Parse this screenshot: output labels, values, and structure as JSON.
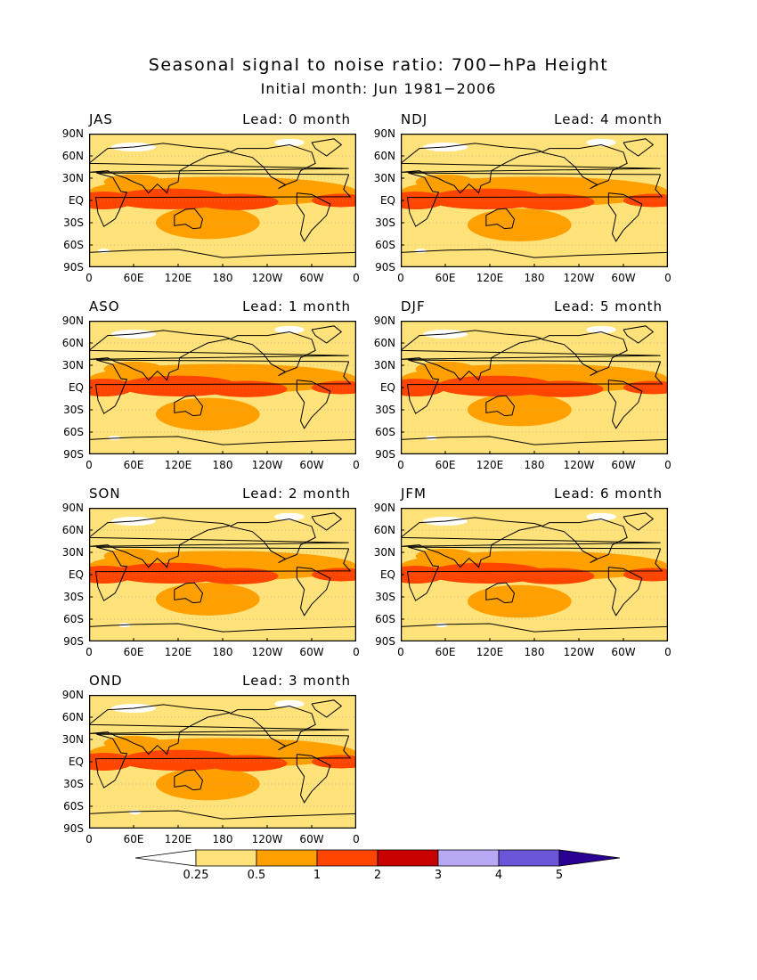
{
  "title": "Seasonal signal to noise ratio: 700−hPa Height",
  "subtitle": "Initial month: Jun 1981−2006",
  "colors": {
    "white": "#ffffff",
    "c025": "#ffe37a",
    "c05": "#ffa000",
    "c1": "#ff4500",
    "c2": "#c80000",
    "c3": "#b9a9f5",
    "c4": "#6b55d8",
    "c5": "#2a0094",
    "coast": "#000000"
  },
  "colorbar": {
    "levels": [
      "0.25",
      "0.5",
      "1",
      "2",
      "3",
      "4",
      "5"
    ]
  },
  "axes": {
    "lat_labels": [
      "90N",
      "60N",
      "30N",
      "EQ",
      "30S",
      "60S",
      "90S"
    ],
    "lon_labels": [
      "0",
      "60E",
      "120E",
      "180",
      "120W",
      "60W",
      "0"
    ]
  },
  "panels": [
    {
      "season": "JAS",
      "lead": "Lead: 0 month",
      "dominant_category": "0.5–1 and 1–2 in tropics"
    },
    {
      "season": "NDJ",
      "lead": "Lead: 4 month",
      "dominant_category": "0.5–1 and 1–2 in tropics"
    },
    {
      "season": "ASO",
      "lead": "Lead: 1 month",
      "dominant_category": "0.5–1 and 1–2 in tropics"
    },
    {
      "season": "DJF",
      "lead": "Lead: 5 month",
      "dominant_category": "0.5–1 and 1–2 in tropics"
    },
    {
      "season": "SON",
      "lead": "Lead: 2 month",
      "dominant_category": "0.5–1 and 1–2 in tropics"
    },
    {
      "season": "JFM",
      "lead": "Lead: 6 month",
      "dominant_category": "0.5–1 and 1–2 in tropics"
    },
    {
      "season": "OND",
      "lead": "Lead: 3 month",
      "dominant_category": "0.5–1 and 1–2 in tropics"
    }
  ]
}
